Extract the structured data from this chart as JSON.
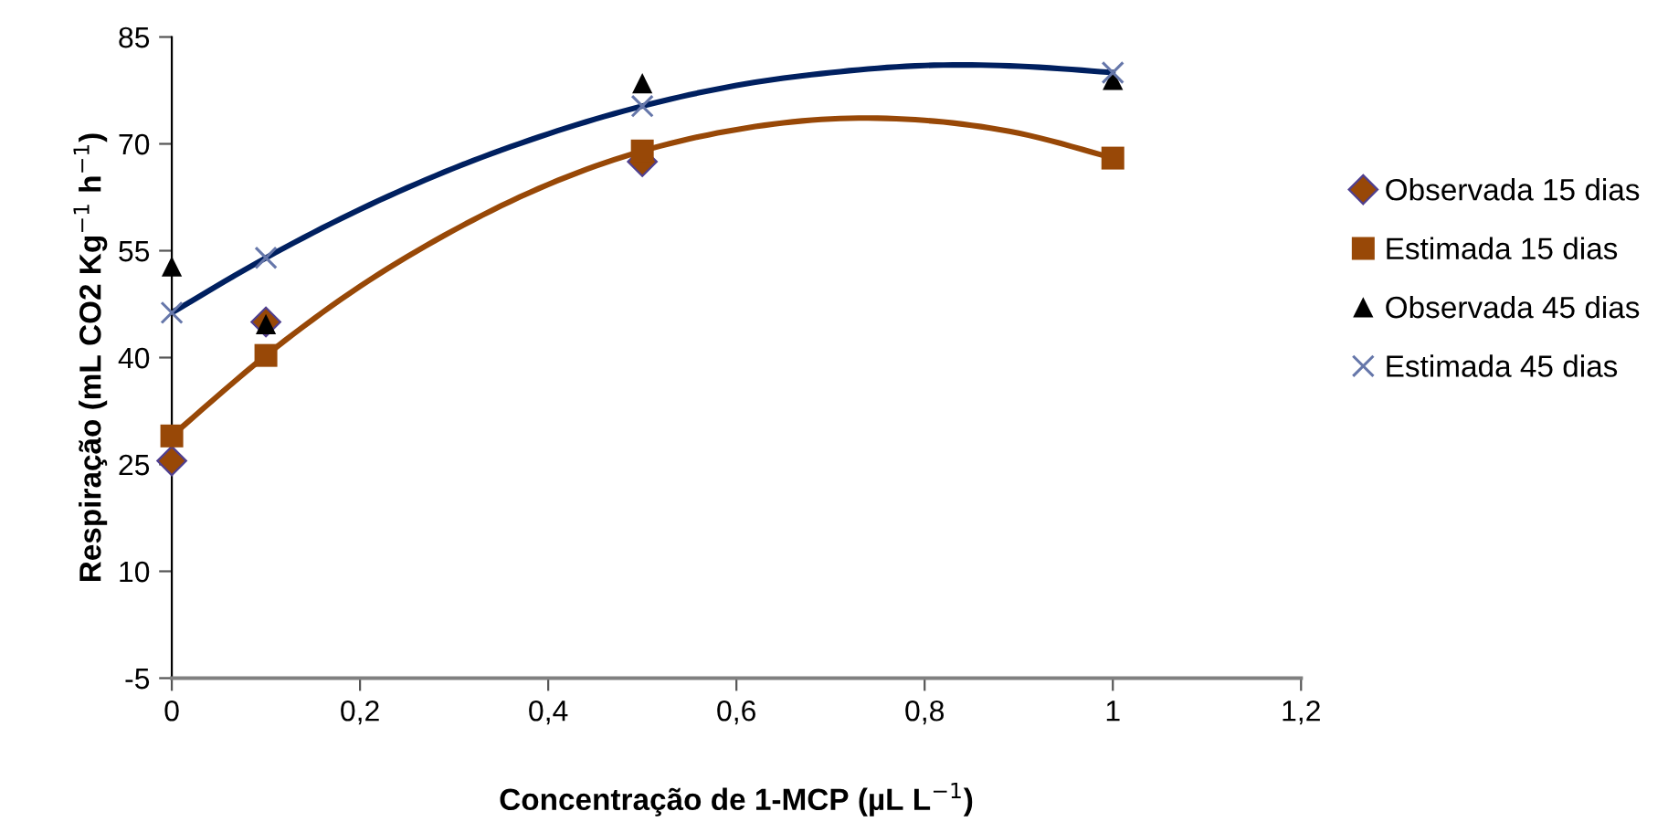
{
  "chart_data": {
    "type": "scatter",
    "xlabel": "Concentração de 1-MCP (µL L$^{−1}$)",
    "ylabel": "Respiração (mL CO2 Kg$^{−1}$ h$^{−1}$)",
    "xlim": [
      0,
      1.2
    ],
    "xticks": [
      0,
      {
        "value": 0.2,
        "label": "0,2"
      },
      {
        "value": 0.4,
        "label": "0,4"
      },
      {
        "value": 0.6,
        "label": "0,6"
      },
      {
        "value": 0.8,
        "label": "0,8"
      },
      1,
      {
        "value": 1.2,
        "label": "1,2"
      }
    ],
    "ylim": [
      -5,
      85
    ],
    "yticks": [
      -5,
      10,
      25,
      40,
      55,
      70,
      85
    ],
    "grid": false,
    "legend": "right",
    "series": [
      {
        "type": "line",
        "color": "#984807",
        "marker": "none",
        "x": [
          0,
          0.1,
          0.2,
          0.3,
          0.4,
          0.5,
          0.6,
          0.7,
          0.8,
          0.9,
          1
        ],
        "values": [
          29,
          40.3,
          50,
          57.9,
          64.3,
          69,
          72,
          73.5,
          73.3,
          71.5,
          68
        ]
      },
      {
        "type": "line",
        "color": "#002060",
        "marker": "none",
        "x": [
          0,
          0.1,
          0.2,
          0.3,
          0.4,
          0.5,
          0.6,
          0.7,
          0.8,
          0.9,
          1
        ],
        "values": [
          46.3,
          54,
          60.8,
          66.6,
          71.4,
          75.3,
          78.2,
          80.0,
          81.0,
          80.9,
          80.0
        ]
      },
      {
        "name": "Observada 15 dias",
        "color": "#984807",
        "marker": "diamond",
        "x": [
          0,
          0.1,
          0.5
        ],
        "values": [
          25.5,
          45,
          67.5
        ]
      },
      {
        "name": "Estimada 15 dias",
        "color": "#984807",
        "marker": "square",
        "x": [
          0,
          0.1,
          0.5,
          1
        ],
        "values": [
          29,
          40.3,
          69,
          68
        ]
      },
      {
        "name": "Observada 45 dias",
        "color": "#000000",
        "marker": "triangle",
        "x": [
          0,
          0.1,
          0.5,
          1
        ],
        "values": [
          52.8,
          44.7,
          78.5,
          79
        ]
      },
      {
        "name": "Estimada 45 dias",
        "color": "#6677aa",
        "marker": "cross",
        "x": [
          0,
          0.1,
          0.5,
          1
        ],
        "values": [
          46.3,
          54,
          75.3,
          80
        ]
      }
    ]
  }
}
